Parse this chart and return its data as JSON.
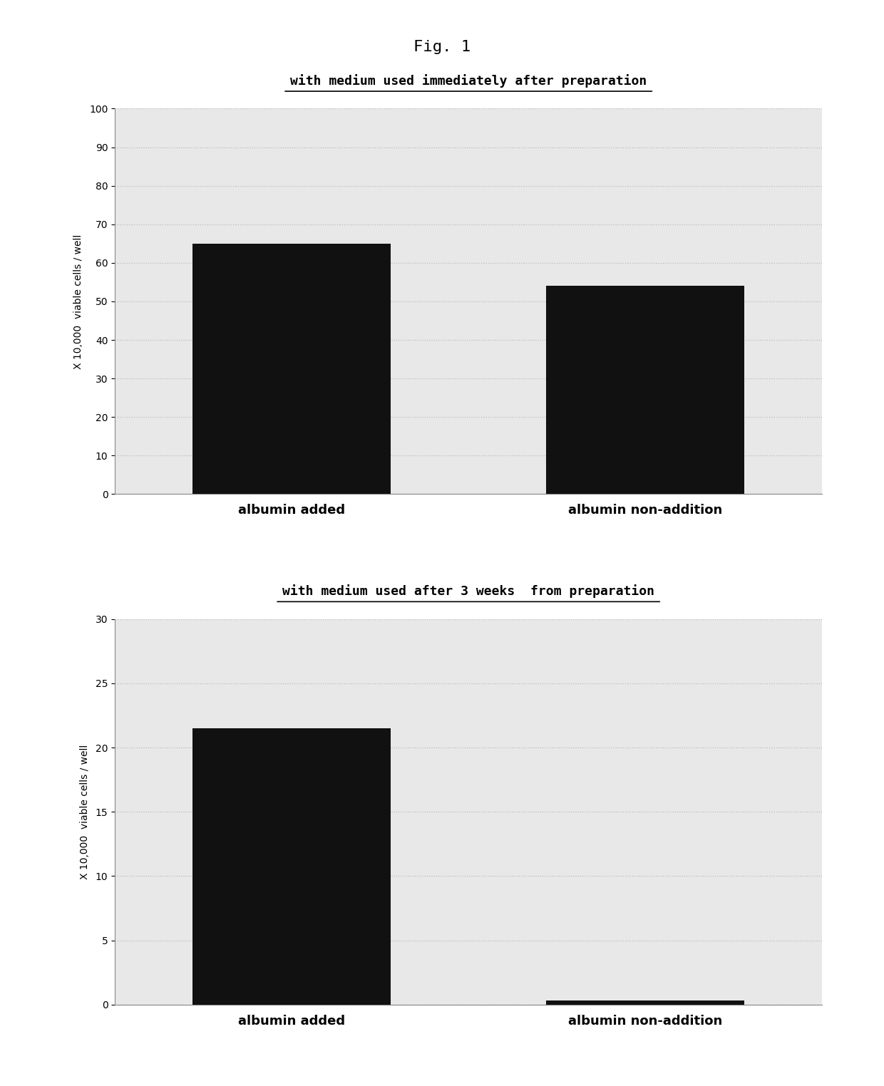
{
  "fig_title": "Fig. 1",
  "fig_title_fontsize": 16,
  "fig_title_font": "monospace",
  "top_chart": {
    "title": "with medium used immediately after preparation",
    "title_fontsize": 13,
    "categories": [
      "albumin added",
      "albumin non-addition"
    ],
    "values": [
      65,
      54
    ],
    "ylim": [
      0,
      100
    ],
    "yticks": [
      0,
      10,
      20,
      30,
      40,
      50,
      60,
      70,
      80,
      90,
      100
    ],
    "ylabel": "X 10,000  viable cells / well",
    "ylabel_fontsize": 10,
    "bar_color": "#111111",
    "bar_width": 0.28,
    "xlabel_fontsize": 13
  },
  "bottom_chart": {
    "title": "with medium used after 3 weeks  from preparation",
    "title_fontsize": 13,
    "categories": [
      "albumin added",
      "albumin non-addition"
    ],
    "values": [
      21.5,
      0.3
    ],
    "ylim": [
      0,
      30
    ],
    "yticks": [
      0,
      5,
      10,
      15,
      20,
      25,
      30
    ],
    "ylabel": "X 10,000  viable cells / well",
    "ylabel_fontsize": 10,
    "bar_color": "#111111",
    "bar_width": 0.28,
    "xlabel_fontsize": 13
  },
  "background_color": "#e8e8e8",
  "grid_color": "#bbbbbb",
  "grid_linestyle": "dotted",
  "grid_linewidth": 0.9,
  "page_bg": "#ffffff"
}
